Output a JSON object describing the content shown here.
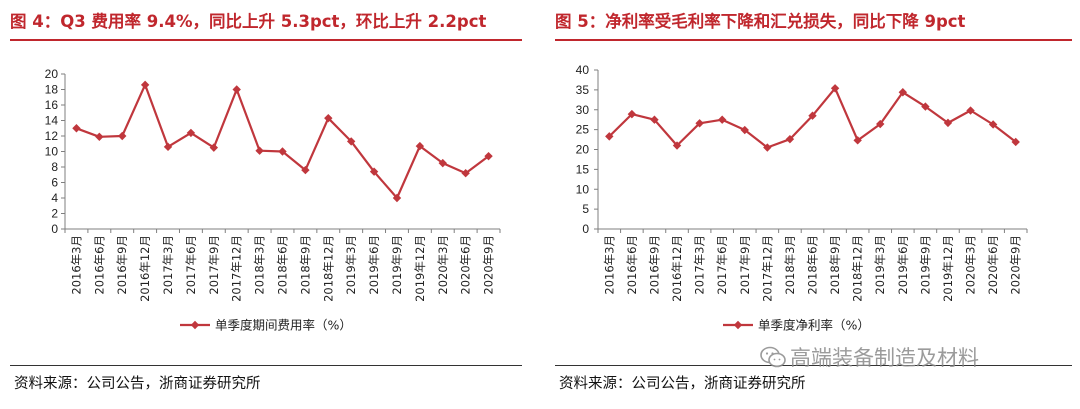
{
  "left": {
    "title": "图 4：Q3 费用率 9.4%，同比上升 5.3pct，环比上升 2.2pct",
    "source": "资料来源：公司公告，浙商证券研究所"
  },
  "right": {
    "title": "图 5：净利率受毛利率下降和汇兑损失，同比下降 9pct",
    "source": "资料来源：公司公告，浙商证券研究所"
  },
  "watermark": "高端装备制造及材料",
  "colors": {
    "line": "#c0373d",
    "title": "#c0272d"
  },
  "chart_data": [
    {
      "type": "line",
      "title": "",
      "categories": [
        "2016年3月",
        "2016年6月",
        "2016年9月",
        "2016年12月",
        "2017年3月",
        "2017年6月",
        "2017年9月",
        "2017年12月",
        "2018年3月",
        "2018年6月",
        "2018年9月",
        "2018年12月",
        "2019年3月",
        "2019年6月",
        "2019年9月",
        "2019年12月",
        "2020年3月",
        "2020年6月",
        "2020年9月"
      ],
      "series": [
        {
          "name": "单季度期间费用率（%）",
          "values": [
            13.0,
            11.9,
            12.0,
            18.6,
            10.6,
            12.4,
            10.5,
            18.0,
            10.1,
            10.0,
            7.6,
            14.3,
            11.3,
            7.4,
            4.0,
            10.7,
            8.5,
            7.2,
            9.4
          ]
        }
      ],
      "ylim": [
        0,
        20
      ],
      "yticks": [
        0,
        2,
        4,
        6,
        8,
        10,
        12,
        14,
        16,
        18,
        20
      ],
      "grid": false,
      "legend": "bottom",
      "marker": "diamond"
    },
    {
      "type": "line",
      "title": "",
      "categories": [
        "2016年3月",
        "2016年6月",
        "2016年9月",
        "2016年12月",
        "2017年3月",
        "2017年6月",
        "2017年9月",
        "2017年12月",
        "2018年3月",
        "2018年6月",
        "2018年9月",
        "2018年12月",
        "2019年3月",
        "2019年6月",
        "2019年9月",
        "2019年12月",
        "2020年3月",
        "2020年6月",
        "2020年9月"
      ],
      "series": [
        {
          "name": "单季度净利率（%）",
          "values": [
            23.3,
            28.9,
            27.5,
            21.0,
            26.6,
            27.5,
            24.9,
            20.5,
            22.6,
            28.5,
            35.4,
            22.3,
            26.4,
            34.4,
            30.8,
            26.7,
            29.8,
            26.3,
            21.9
          ]
        }
      ],
      "ylim": [
        0,
        40
      ],
      "yticks": [
        0,
        5,
        10,
        15,
        20,
        25,
        30,
        35,
        40
      ],
      "grid": false,
      "legend": "bottom",
      "marker": "diamond"
    }
  ]
}
